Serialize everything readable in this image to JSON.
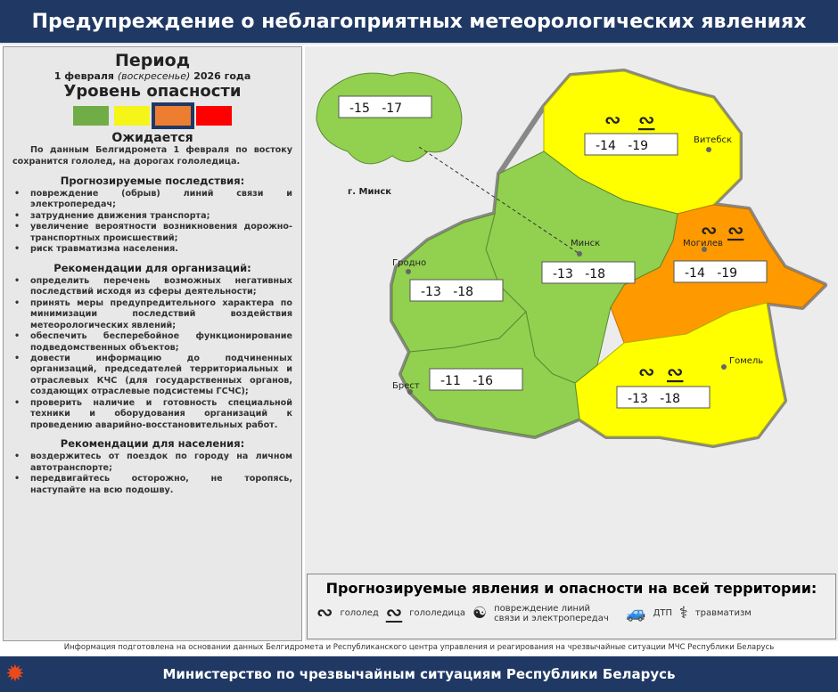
{
  "header": {
    "title": "Предупреждение о неблагоприятных метеорологических явлениях"
  },
  "left": {
    "period_title": "Период",
    "date_prefix": "1 февраля",
    "date_weekday": "(воскресенье)",
    "date_suffix": "2026 года",
    "level_title": "Уровень опасности",
    "levels": [
      {
        "color": "#70ad47"
      },
      {
        "color": "#f5f51a"
      },
      {
        "color": "#ed7d31",
        "selected": true
      },
      {
        "color": "#ff0000"
      }
    ],
    "expected_title": "Ожидается",
    "expected_text": "По данным Белгидромета 1 февраля по востоку сохранится гололед, на дорогах гололедица.",
    "consequences_title": "Прогнозируемые последствия:",
    "consequences": [
      "повреждение (обрыв) линий связи и электропередач;",
      "затруднение движения транспорта;",
      "увеличение вероятности возникновения дорожно-транспортных происшествий;",
      "риск травматизма населения."
    ],
    "org_title": "Рекомендации для организаций:",
    "org": [
      "определить перечень возможных негативных последствий исходя из сферы деятельности;",
      "принять меры предупредительного характера по минимизации последствий воздействия метеорологических явлений;",
      "обеспечить бесперебойное функционирование подведомственных объектов;",
      "довести информацию до подчиненных организаций, председателей территориальных и отраслевых КЧС (для государственных органов, создающих отраслевые подсистемы ГСЧС);",
      "проверить наличие и готовность специальной техники и оборудования организаций к проведению аварийно-восстановительных работ."
    ],
    "pop_title": "Рекомендации для населения:",
    "pop": [
      "воздержитесь от поездок по городу на личном автотранспорте;",
      "передвигайтесь осторожно, не торопясь, наступайте на всю подошву."
    ]
  },
  "map": {
    "minsk_city": {
      "label": "г. Минск",
      "temp": "-15   -17",
      "color": "#92d050"
    },
    "regions": [
      {
        "name": "Витебск",
        "temp": "-14   -19",
        "color": "#ffff00",
        "level": "yellow",
        "phenomena": [
          "гололед",
          "гололедица"
        ]
      },
      {
        "name": "Могилев",
        "temp": "-14   -19",
        "color": "#ff9900",
        "level": "orange",
        "phenomena": [
          "гололед",
          "гололедица"
        ]
      },
      {
        "name": "Гомель",
        "temp": "-13   -18",
        "color": "#ffff00",
        "level": "yellow",
        "phenomena": [
          "гололед",
          "гололедица"
        ]
      },
      {
        "name": "Минск",
        "temp": "-13   -18",
        "color": "#92d050",
        "level": "green"
      },
      {
        "name": "Гродно",
        "temp": "-13   -18",
        "color": "#92d050",
        "level": "green"
      },
      {
        "name": "Брест",
        "temp": "-11   -16",
        "color": "#92d050",
        "level": "green"
      }
    ]
  },
  "legend": {
    "title": "Прогнозируемые явления и опасности на всей территории:",
    "items": [
      {
        "icon": "ice-icon",
        "label": "гололед"
      },
      {
        "icon": "black-ice-icon",
        "label": "гололедица"
      },
      {
        "icon": "power-line-icon",
        "label": "повреждение линий связи и электропередач"
      },
      {
        "icon": "car-crash-icon",
        "label": "ДТП"
      },
      {
        "icon": "injury-icon",
        "label": "травматизм"
      }
    ]
  },
  "note": "Информация подготовлена на основании данных Белгидромета и Республиканского центра управления и реагирования на чрезвычайные ситуации МЧС Республики Беларусь",
  "footer": "Министерство по чрезвычайным ситуациям Республики Беларусь"
}
